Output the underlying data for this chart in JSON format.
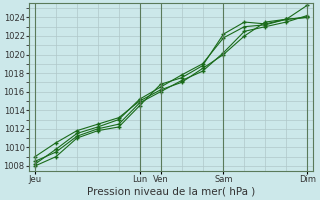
{
  "xlabel": "Pression niveau de la mer( hPa )",
  "bg_color": "#cce8ea",
  "grid_color": "#b0c8ca",
  "line_color": "#1a6b1a",
  "ylim": [
    1007.5,
    1025.5
  ],
  "yticks": [
    1008,
    1010,
    1012,
    1014,
    1016,
    1018,
    1020,
    1022,
    1024
  ],
  "day_labels": [
    "Jeu",
    "Lun",
    "Ven",
    "Sam",
    "Dim"
  ],
  "day_positions": [
    0,
    5,
    6,
    9,
    13
  ],
  "xlim": [
    -0.3,
    13.3
  ],
  "series": [
    {
      "x": [
        0,
        1,
        2,
        3,
        4,
        5,
        6,
        7,
        8,
        9,
        10,
        11,
        12,
        13
      ],
      "y": [
        1008.5,
        1009.5,
        1011.2,
        1012.0,
        1012.5,
        1014.8,
        1016.0,
        1017.2,
        1018.2,
        1020.2,
        1022.5,
        1023.0,
        1023.5,
        1024.2
      ]
    },
    {
      "x": [
        0,
        1,
        2,
        3,
        4,
        5,
        6,
        7,
        8,
        9,
        10,
        11,
        12,
        13
      ],
      "y": [
        1008.2,
        1009.8,
        1011.5,
        1012.2,
        1013.0,
        1015.2,
        1016.5,
        1017.8,
        1019.0,
        1021.8,
        1023.0,
        1023.2,
        1023.8,
        1024.0
      ]
    },
    {
      "x": [
        0,
        1,
        2,
        3,
        4,
        5,
        6,
        7,
        8,
        9,
        10,
        11,
        12,
        13
      ],
      "y": [
        1008.0,
        1009.0,
        1011.0,
        1011.8,
        1012.2,
        1014.5,
        1016.8,
        1017.5,
        1018.8,
        1022.2,
        1023.5,
        1023.3,
        1023.8,
        1025.3
      ]
    },
    {
      "x": [
        0,
        1,
        2,
        3,
        4,
        5,
        6,
        7,
        8,
        9,
        10,
        11,
        12,
        13
      ],
      "y": [
        1009.0,
        1010.5,
        1011.8,
        1012.5,
        1013.2,
        1015.0,
        1016.2,
        1017.0,
        1018.5,
        1020.0,
        1022.0,
        1023.5,
        1023.8,
        1024.0
      ]
    }
  ]
}
